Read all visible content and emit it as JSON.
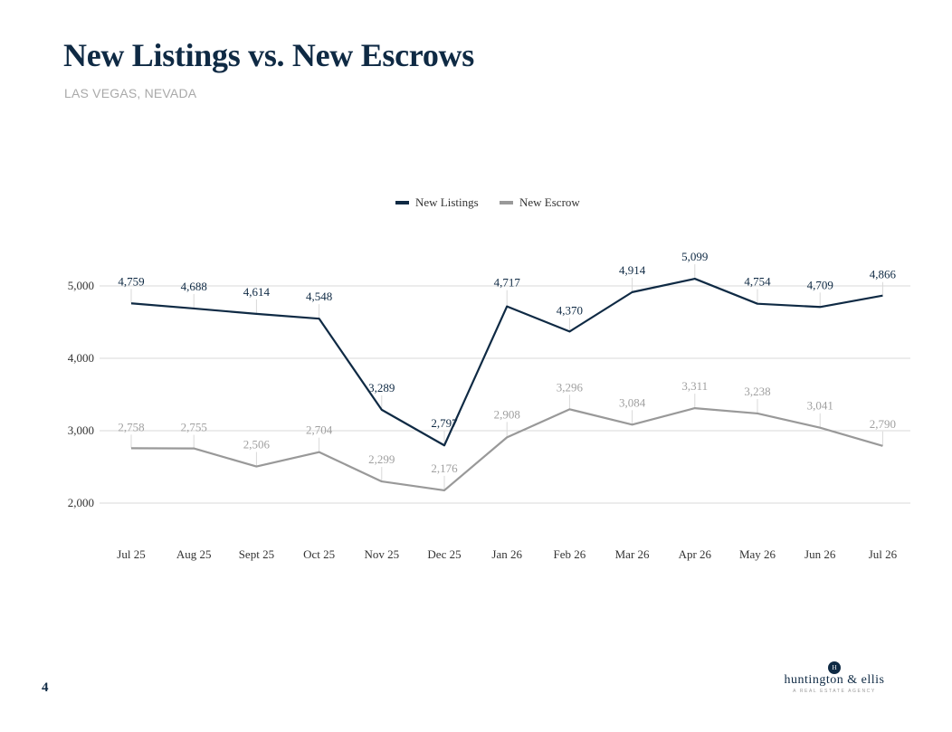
{
  "header": {
    "title": "New Listings vs. New Escrows",
    "subtitle": "LAS VEGAS, NEVADA"
  },
  "footer": {
    "page_number": "4",
    "brand_mark": "H",
    "brand_name": "huntington & ellis",
    "brand_tagline": "A REAL ESTATE AGENCY"
  },
  "chart_data": {
    "type": "line",
    "categories": [
      "Jul 25",
      "Aug 25",
      "Sept 25",
      "Oct 25",
      "Nov 25",
      "Dec 25",
      "Jan 26",
      "Feb 26",
      "Mar 26",
      "Apr 26",
      "May 26",
      "Jun 26",
      "Jul 26"
    ],
    "series": [
      {
        "name": "New Listings",
        "color": "#0f2a44",
        "values": [
          4759,
          4688,
          4614,
          4548,
          3289,
          2797,
          4717,
          4370,
          4914,
          5099,
          4754,
          4709,
          4866
        ]
      },
      {
        "name": "New Escrow",
        "color": "#999999",
        "values": [
          2758,
          2755,
          2506,
          2704,
          2299,
          2176,
          2908,
          3296,
          3084,
          3311,
          3238,
          3041,
          2790
        ]
      }
    ],
    "y_ticks": [
      2000,
      3000,
      4000,
      5000
    ],
    "ylim": [
      2000,
      5000
    ],
    "legend": "top-center",
    "grid": true
  }
}
